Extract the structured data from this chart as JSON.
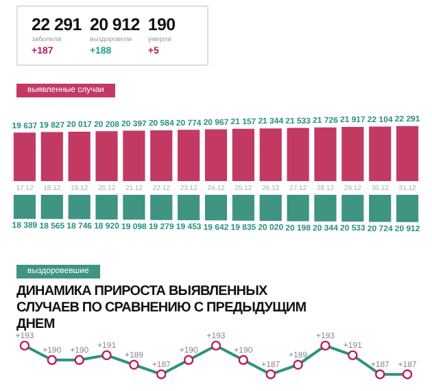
{
  "chart_data": [
    {
      "type": "other",
      "annotations": [
        "22 291",
        "заболели",
        "+187",
        "20 912",
        "выздоровели",
        "+188",
        "190",
        "умерли",
        "+5"
      ]
    },
    {
      "type": "bar",
      "title": "выявленные случаи",
      "categories": [
        "17.12",
        "18.12",
        "19.12",
        "20.12",
        "21.12",
        "22.12",
        "23.12",
        "24.12",
        "25.12",
        "26.12",
        "27.12",
        "28.12",
        "29.12",
        "30.12",
        "31.12"
      ],
      "values": [
        19637,
        19827,
        20017,
        20208,
        20397,
        20584,
        20774,
        20967,
        21157,
        21344,
        21533,
        21726,
        21917,
        22104,
        22291
      ],
      "color": "#c23a63",
      "data_labels": true,
      "grid": false,
      "legend": false,
      "tick_labels": "x"
    },
    {
      "type": "bar",
      "title": "выздоровевшие",
      "categories": [
        "17.12",
        "18.12",
        "19.12",
        "20.12",
        "21.12",
        "22.12",
        "23.12",
        "24.12",
        "25.12",
        "26.12",
        "27.12",
        "28.12",
        "29.12",
        "30.12",
        "31.12"
      ],
      "values": [
        18389,
        18565,
        18746,
        18920,
        19098,
        19279,
        19453,
        19642,
        19835,
        20020,
        20198,
        20344,
        20533,
        20724,
        20912
      ],
      "color": "#3f9484",
      "data_labels": true,
      "grid": false,
      "legend": false,
      "tick_labels": false
    },
    {
      "type": "line",
      "title": "ДИНАМИКА ПРИРОСТА ВЫЯВЛЕННЫХ СЛУЧАЕВ ПО СРАВНЕНИЮ С ПРЕДЫДУЩИМ ДНЕМ",
      "categories": [
        "17.12",
        "18.12",
        "19.12",
        "20.12",
        "21.12",
        "22.12",
        "23.12",
        "24.12",
        "25.12",
        "26.12",
        "27.12",
        "28.12",
        "29.12",
        "30.12",
        "31.12"
      ],
      "series": [
        {
          "color": "#2a9478",
          "values": [
            193,
            190,
            190,
            191,
            189,
            187,
            190,
            193,
            190,
            187,
            189,
            193,
            191,
            187,
            187
          ],
          "value_labels": [
            "+193",
            "+190",
            "+190",
            "+191",
            "+189",
            "+187",
            "+190",
            "+193",
            "+190",
            "+187",
            "+189",
            "+193",
            "+191",
            "+187",
            "+187"
          ]
        }
      ],
      "marker": "circle",
      "line_style": "solid",
      "grid": false,
      "legend": false,
      "tick_labels": false
    }
  ]
}
